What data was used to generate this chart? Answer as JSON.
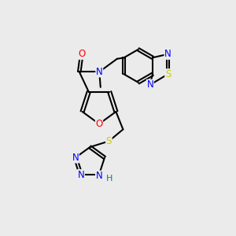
{
  "bg_color": "#ebebeb",
  "atom_colors": {
    "C": "#000000",
    "N": "#0000ff",
    "O": "#ff0000",
    "S": "#cccc00",
    "H": "#008080"
  },
  "title": ""
}
